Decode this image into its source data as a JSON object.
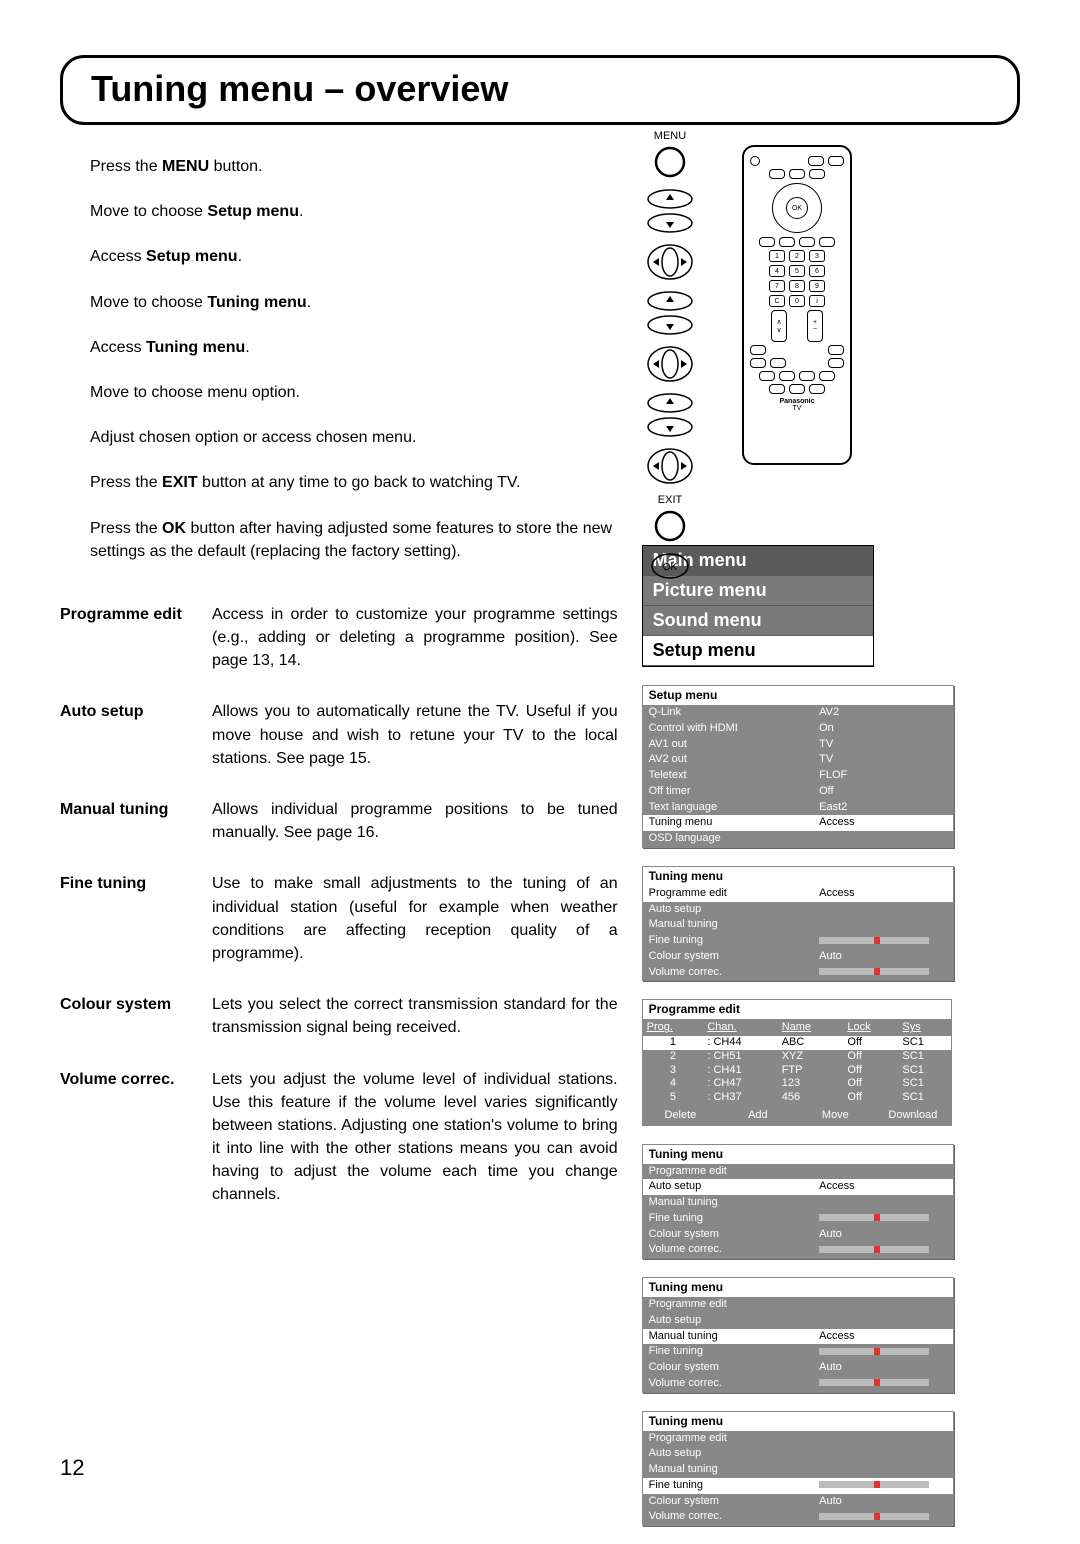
{
  "page_number": "12",
  "title": "Tuning menu – overview",
  "steps": [
    {
      "pre": "Press the ",
      "b": "MENU",
      "post": " button."
    },
    {
      "pre": "Move to choose ",
      "b": "Setup menu",
      "post": "."
    },
    {
      "pre": "Access ",
      "b": "Setup menu",
      "post": "."
    },
    {
      "pre": "Move to choose ",
      "b": "Tuning menu",
      "post": "."
    },
    {
      "pre": "Access ",
      "b": "Tuning menu",
      "post": "."
    },
    {
      "pre": "Move to choose menu option.",
      "b": "",
      "post": ""
    },
    {
      "pre": "Adjust chosen option or access chosen menu.",
      "b": "",
      "post": ""
    },
    {
      "pre": "Press the ",
      "b": "EXIT",
      "post": " button at any time to go back to watching TV."
    },
    {
      "pre": "Press the ",
      "b": "OK",
      "post": " button after having adjusted some features to store the new settings as the default (replacing the factory setting)."
    }
  ],
  "descriptions": [
    {
      "label": "Programme edit",
      "text": "Access in order to customize your programme settings (e.g., adding or deleting a programme position). See page 13, 14."
    },
    {
      "label": "Auto setup",
      "text": "Allows you to automatically retune the TV. Useful if you move house and wish to retune your TV to the local stations. See page 15."
    },
    {
      "label": "Manual tuning",
      "text": "Allows individual programme positions to be tuned manually. See page 16."
    },
    {
      "label": "Fine tuning",
      "text": "Use to make small adjustments to the tuning of an individual station (useful for example when weather conditions are affecting reception quality of a programme)."
    },
    {
      "label": "Colour system",
      "text": "Lets you select the correct transmission standard for the transmission signal being received."
    },
    {
      "label": "Volume correc.",
      "text": "Lets you adjust the volume level of individual stations. Use this feature if the volume level varies significantly between stations. Adjusting one station's volume to bring it into line with the other stations means you can avoid having to adjust the volume each time you change channels."
    }
  ],
  "remote_labels": {
    "menu": "MENU",
    "exit": "EXIT",
    "ok": "OK"
  },
  "remote_brand": {
    "name": "Panasonic",
    "sub": "TV"
  },
  "main_menu": {
    "title": "Main menu",
    "items": [
      "Picture menu",
      "Sound menu",
      "Setup menu"
    ],
    "active_index": 2
  },
  "setup_menu": {
    "title": "Setup menu",
    "rows": [
      [
        "Q-Link",
        "AV2"
      ],
      [
        "Control with HDMI",
        "On"
      ],
      [
        "AV1 out",
        "TV"
      ],
      [
        "AV2 out",
        "TV"
      ],
      [
        "Teletext",
        "FLOF"
      ],
      [
        "Off timer",
        "Off"
      ],
      [
        "Text language",
        "East2"
      ],
      [
        "Tuning menu",
        "Access"
      ],
      [
        "OSD language",
        ""
      ]
    ],
    "selected_row": 7
  },
  "tuning_menu_prog": {
    "title": "Tuning menu",
    "rows": [
      [
        "Programme edit",
        "Access"
      ],
      [
        "Auto setup",
        ""
      ],
      [
        "Manual tuning",
        ""
      ],
      [
        "Fine tuning",
        "slider"
      ],
      [
        "Colour system",
        "Auto"
      ],
      [
        "Volume correc.",
        "slider"
      ]
    ],
    "selected_row": 0
  },
  "programme_edit": {
    "title": "Programme edit",
    "headers": [
      "Prog.",
      "Chan.",
      "Name",
      "Lock",
      "Sys"
    ],
    "rows": [
      [
        "1",
        ":",
        "CH44",
        "ABC",
        "Off",
        "SC1"
      ],
      [
        "2",
        ":",
        "CH51",
        "XYZ",
        "Off",
        "SC1"
      ],
      [
        "3",
        ":",
        "CH41",
        "FTP",
        "Off",
        "SC1"
      ],
      [
        "4",
        ":",
        "CH47",
        "123",
        "Off",
        "SC1"
      ],
      [
        "5",
        ":",
        "CH37",
        "456",
        "Off",
        "SC1"
      ]
    ],
    "selected_row": 0,
    "footer": [
      "Delete",
      "Add",
      "Move",
      "Download"
    ]
  },
  "tuning_menu_auto": {
    "title": "Tuning menu",
    "rows": [
      [
        "Programme edit",
        ""
      ],
      [
        "Auto setup",
        "Access"
      ],
      [
        "Manual tuning",
        ""
      ],
      [
        "Fine tuning",
        "slider"
      ],
      [
        "Colour system",
        "Auto"
      ],
      [
        "Volume correc.",
        "slider"
      ]
    ],
    "selected_row": 1
  },
  "tuning_menu_manual": {
    "title": "Tuning menu",
    "rows": [
      [
        "Programme edit",
        ""
      ],
      [
        "Auto setup",
        ""
      ],
      [
        "Manual tuning",
        "Access"
      ],
      [
        "Fine tuning",
        "slider"
      ],
      [
        "Colour system",
        "Auto"
      ],
      [
        "Volume correc.",
        "slider"
      ]
    ],
    "selected_row": 2
  },
  "tuning_menu_last": {
    "title": "Tuning menu",
    "rows": [
      [
        "Programme edit",
        ""
      ],
      [
        "Auto setup",
        ""
      ],
      [
        "Manual tuning",
        ""
      ],
      [
        "Fine tuning",
        "slider-sel"
      ],
      [
        "Colour system",
        "Auto"
      ],
      [
        "Volume correc.",
        "slider-sel"
      ]
    ],
    "selected_row": 3
  },
  "colors": {
    "menu_bg": "#888888",
    "menu_sel_bg": "#ffffff",
    "slider_knob": "#d33333"
  }
}
